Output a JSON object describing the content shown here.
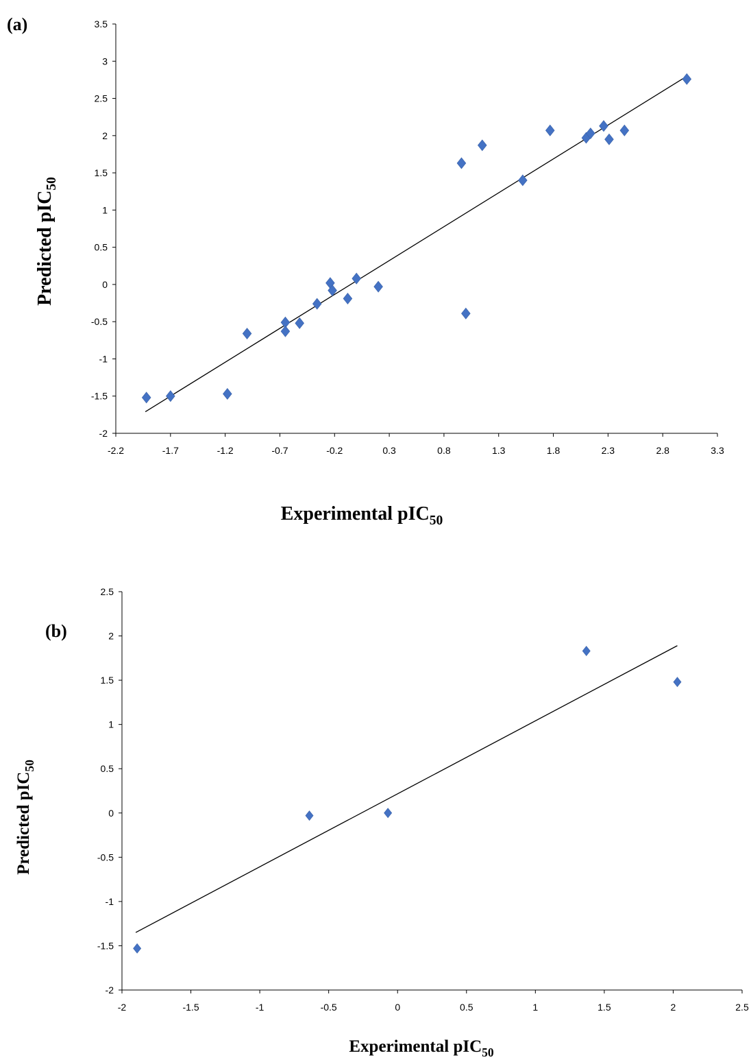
{
  "chart_data": [
    {
      "type": "scatter",
      "panel_label": "(a)",
      "xlabel": "Experimental  pIC",
      "xlabel_sub": "50",
      "ylabel": "Predicted  pIC",
      "ylabel_sub": "50",
      "xlim": [
        -2.2,
        3.3
      ],
      "ylim": [
        -2,
        3.5
      ],
      "x_ticks": [
        "-2.2",
        "-1.7",
        "-1.2",
        "-0.7",
        "-0.2",
        "0.3",
        "0.8",
        "1.3",
        "1.8",
        "2.3",
        "2.8",
        "3.3"
      ],
      "y_ticks": [
        "-2",
        "-1.5",
        "-1",
        "-0.5",
        "0",
        "0.5",
        "1",
        "1.5",
        "2",
        "2.5",
        "3",
        "3.5"
      ],
      "marker_color": "#4472C4",
      "trendline": {
        "x": [
          -1.93,
          3.0
        ],
        "y": [
          -1.71,
          2.78
        ]
      },
      "points": [
        {
          "x": -1.92,
          "y": -1.52
        },
        {
          "x": -1.7,
          "y": -1.5
        },
        {
          "x": -1.18,
          "y": -1.47
        },
        {
          "x": -1.0,
          "y": -0.66
        },
        {
          "x": -0.65,
          "y": -0.51
        },
        {
          "x": -0.65,
          "y": -0.63
        },
        {
          "x": -0.52,
          "y": -0.52
        },
        {
          "x": -0.36,
          "y": -0.26
        },
        {
          "x": -0.24,
          "y": 0.02
        },
        {
          "x": -0.22,
          "y": -0.08
        },
        {
          "x": -0.08,
          "y": -0.19
        },
        {
          "x": 0.0,
          "y": 0.08
        },
        {
          "x": 0.2,
          "y": -0.03
        },
        {
          "x": 0.96,
          "y": 1.63
        },
        {
          "x": 1.0,
          "y": -0.39
        },
        {
          "x": 1.15,
          "y": 1.87
        },
        {
          "x": 1.52,
          "y": 1.4
        },
        {
          "x": 1.77,
          "y": 2.07
        },
        {
          "x": 2.1,
          "y": 1.97
        },
        {
          "x": 2.14,
          "y": 2.03
        },
        {
          "x": 2.26,
          "y": 2.13
        },
        {
          "x": 2.31,
          "y": 1.95
        },
        {
          "x": 2.45,
          "y": 2.07
        },
        {
          "x": 3.02,
          "y": 2.76
        }
      ]
    },
    {
      "type": "scatter",
      "panel_label": "(b)",
      "xlabel": "Experimental  pIC",
      "xlabel_sub": "50",
      "ylabel": "Predicted pIC",
      "ylabel_sub": "50",
      "xlim": [
        -2,
        2.5
      ],
      "ylim": [
        -2,
        2.5
      ],
      "x_ticks": [
        "-2",
        "-1.5",
        "-1",
        "-0.5",
        "0",
        "0.5",
        "1",
        "1.5",
        "2",
        "2.5"
      ],
      "y_ticks": [
        "-2",
        "-1.5",
        "-1",
        "-0.5",
        "0",
        "0.5",
        "1",
        "1.5",
        "2",
        "2.5"
      ],
      "marker_color": "#4472C4",
      "trendline": {
        "x": [
          -1.9,
          2.03
        ],
        "y": [
          -1.35,
          1.89
        ]
      },
      "points": [
        {
          "x": -1.89,
          "y": -1.53
        },
        {
          "x": -0.64,
          "y": -0.03
        },
        {
          "x": -0.07,
          "y": 0.0
        },
        {
          "x": 1.37,
          "y": 1.83
        },
        {
          "x": 2.03,
          "y": 1.48
        }
      ]
    }
  ]
}
